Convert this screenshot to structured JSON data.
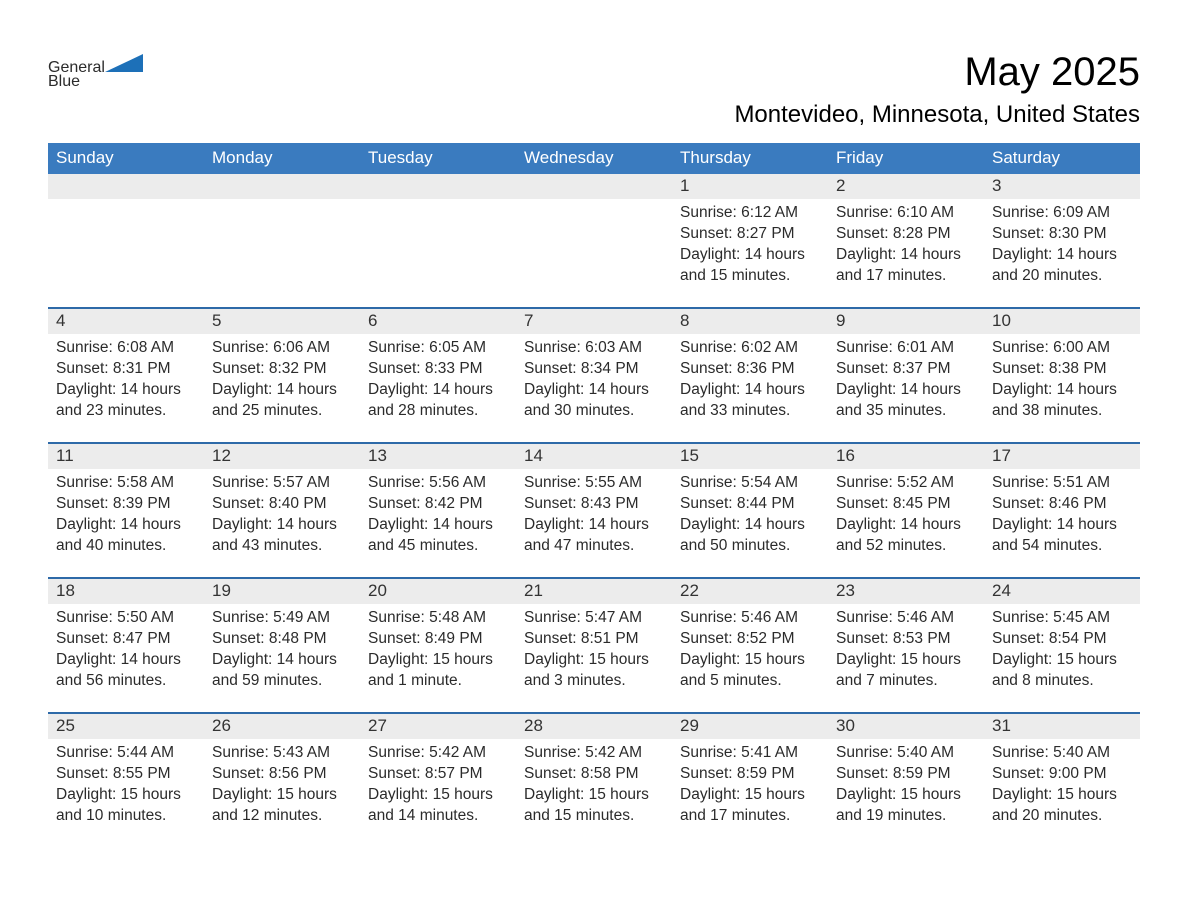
{
  "brand": {
    "word1": "General",
    "word2": "Blue",
    "triangle_color": "#1d70b8"
  },
  "header": {
    "month_title": "May 2025",
    "location": "Montevideo, Minnesota, United States"
  },
  "colors": {
    "header_bg": "#3a7bbf",
    "accent_line": "#2e6aa8",
    "daynum_bg": "#ececec",
    "text": "#2b2b2b",
    "brand_blue": "#1d70b8",
    "page_bg": "#ffffff"
  },
  "weekday_labels": [
    "Sunday",
    "Monday",
    "Tuesday",
    "Wednesday",
    "Thursday",
    "Friday",
    "Saturday"
  ],
  "weeks": [
    [
      null,
      null,
      null,
      null,
      {
        "n": "1",
        "sunrise": "Sunrise: 6:12 AM",
        "sunset": "Sunset: 8:27 PM",
        "daylight": "Daylight: 14 hours and 15 minutes."
      },
      {
        "n": "2",
        "sunrise": "Sunrise: 6:10 AM",
        "sunset": "Sunset: 8:28 PM",
        "daylight": "Daylight: 14 hours and 17 minutes."
      },
      {
        "n": "3",
        "sunrise": "Sunrise: 6:09 AM",
        "sunset": "Sunset: 8:30 PM",
        "daylight": "Daylight: 14 hours and 20 minutes."
      }
    ],
    [
      {
        "n": "4",
        "sunrise": "Sunrise: 6:08 AM",
        "sunset": "Sunset: 8:31 PM",
        "daylight": "Daylight: 14 hours and 23 minutes."
      },
      {
        "n": "5",
        "sunrise": "Sunrise: 6:06 AM",
        "sunset": "Sunset: 8:32 PM",
        "daylight": "Daylight: 14 hours and 25 minutes."
      },
      {
        "n": "6",
        "sunrise": "Sunrise: 6:05 AM",
        "sunset": "Sunset: 8:33 PM",
        "daylight": "Daylight: 14 hours and 28 minutes."
      },
      {
        "n": "7",
        "sunrise": "Sunrise: 6:03 AM",
        "sunset": "Sunset: 8:34 PM",
        "daylight": "Daylight: 14 hours and 30 minutes."
      },
      {
        "n": "8",
        "sunrise": "Sunrise: 6:02 AM",
        "sunset": "Sunset: 8:36 PM",
        "daylight": "Daylight: 14 hours and 33 minutes."
      },
      {
        "n": "9",
        "sunrise": "Sunrise: 6:01 AM",
        "sunset": "Sunset: 8:37 PM",
        "daylight": "Daylight: 14 hours and 35 minutes."
      },
      {
        "n": "10",
        "sunrise": "Sunrise: 6:00 AM",
        "sunset": "Sunset: 8:38 PM",
        "daylight": "Daylight: 14 hours and 38 minutes."
      }
    ],
    [
      {
        "n": "11",
        "sunrise": "Sunrise: 5:58 AM",
        "sunset": "Sunset: 8:39 PM",
        "daylight": "Daylight: 14 hours and 40 minutes."
      },
      {
        "n": "12",
        "sunrise": "Sunrise: 5:57 AM",
        "sunset": "Sunset: 8:40 PM",
        "daylight": "Daylight: 14 hours and 43 minutes."
      },
      {
        "n": "13",
        "sunrise": "Sunrise: 5:56 AM",
        "sunset": "Sunset: 8:42 PM",
        "daylight": "Daylight: 14 hours and 45 minutes."
      },
      {
        "n": "14",
        "sunrise": "Sunrise: 5:55 AM",
        "sunset": "Sunset: 8:43 PM",
        "daylight": "Daylight: 14 hours and 47 minutes."
      },
      {
        "n": "15",
        "sunrise": "Sunrise: 5:54 AM",
        "sunset": "Sunset: 8:44 PM",
        "daylight": "Daylight: 14 hours and 50 minutes."
      },
      {
        "n": "16",
        "sunrise": "Sunrise: 5:52 AM",
        "sunset": "Sunset: 8:45 PM",
        "daylight": "Daylight: 14 hours and 52 minutes."
      },
      {
        "n": "17",
        "sunrise": "Sunrise: 5:51 AM",
        "sunset": "Sunset: 8:46 PM",
        "daylight": "Daylight: 14 hours and 54 minutes."
      }
    ],
    [
      {
        "n": "18",
        "sunrise": "Sunrise: 5:50 AM",
        "sunset": "Sunset: 8:47 PM",
        "daylight": "Daylight: 14 hours and 56 minutes."
      },
      {
        "n": "19",
        "sunrise": "Sunrise: 5:49 AM",
        "sunset": "Sunset: 8:48 PM",
        "daylight": "Daylight: 14 hours and 59 minutes."
      },
      {
        "n": "20",
        "sunrise": "Sunrise: 5:48 AM",
        "sunset": "Sunset: 8:49 PM",
        "daylight": "Daylight: 15 hours and 1 minute."
      },
      {
        "n": "21",
        "sunrise": "Sunrise: 5:47 AM",
        "sunset": "Sunset: 8:51 PM",
        "daylight": "Daylight: 15 hours and 3 minutes."
      },
      {
        "n": "22",
        "sunrise": "Sunrise: 5:46 AM",
        "sunset": "Sunset: 8:52 PM",
        "daylight": "Daylight: 15 hours and 5 minutes."
      },
      {
        "n": "23",
        "sunrise": "Sunrise: 5:46 AM",
        "sunset": "Sunset: 8:53 PM",
        "daylight": "Daylight: 15 hours and 7 minutes."
      },
      {
        "n": "24",
        "sunrise": "Sunrise: 5:45 AM",
        "sunset": "Sunset: 8:54 PM",
        "daylight": "Daylight: 15 hours and 8 minutes."
      }
    ],
    [
      {
        "n": "25",
        "sunrise": "Sunrise: 5:44 AM",
        "sunset": "Sunset: 8:55 PM",
        "daylight": "Daylight: 15 hours and 10 minutes."
      },
      {
        "n": "26",
        "sunrise": "Sunrise: 5:43 AM",
        "sunset": "Sunset: 8:56 PM",
        "daylight": "Daylight: 15 hours and 12 minutes."
      },
      {
        "n": "27",
        "sunrise": "Sunrise: 5:42 AM",
        "sunset": "Sunset: 8:57 PM",
        "daylight": "Daylight: 15 hours and 14 minutes."
      },
      {
        "n": "28",
        "sunrise": "Sunrise: 5:42 AM",
        "sunset": "Sunset: 8:58 PM",
        "daylight": "Daylight: 15 hours and 15 minutes."
      },
      {
        "n": "29",
        "sunrise": "Sunrise: 5:41 AM",
        "sunset": "Sunset: 8:59 PM",
        "daylight": "Daylight: 15 hours and 17 minutes."
      },
      {
        "n": "30",
        "sunrise": "Sunrise: 5:40 AM",
        "sunset": "Sunset: 8:59 PM",
        "daylight": "Daylight: 15 hours and 19 minutes."
      },
      {
        "n": "31",
        "sunrise": "Sunrise: 5:40 AM",
        "sunset": "Sunset: 9:00 PM",
        "daylight": "Daylight: 15 hours and 20 minutes."
      }
    ]
  ]
}
